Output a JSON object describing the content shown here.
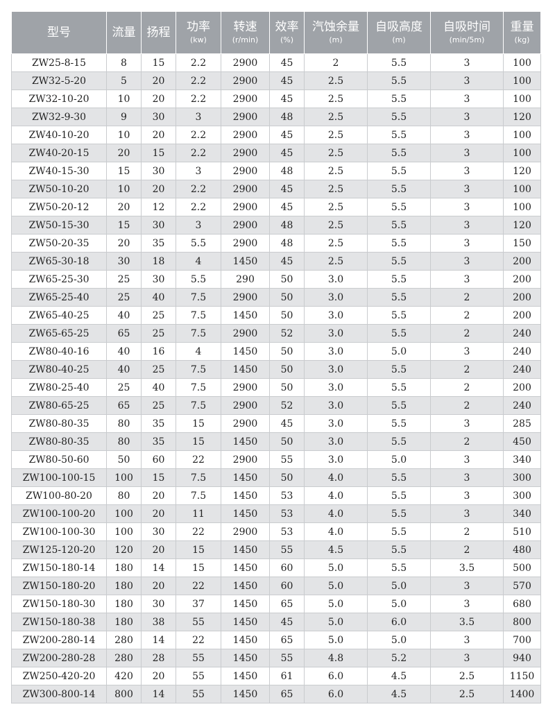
{
  "table": {
    "headers": [
      {
        "label": "型号",
        "unit": ""
      },
      {
        "label": "流量",
        "unit": ""
      },
      {
        "label": "扬程",
        "unit": ""
      },
      {
        "label": "功率",
        "unit": "(kw)"
      },
      {
        "label": "转速",
        "unit": "(r/min)"
      },
      {
        "label": "效率",
        "unit": "(%)"
      },
      {
        "label": "汽蚀余量",
        "unit": "(m)"
      },
      {
        "label": "自吸高度",
        "unit": "(m)"
      },
      {
        "label": "自吸时间",
        "unit": "(min/5m)"
      },
      {
        "label": "重量",
        "unit": "(kg)"
      }
    ],
    "rows": [
      [
        "ZW25-8-15",
        "8",
        "15",
        "2.2",
        "2900",
        "45",
        "2",
        "5.5",
        "3",
        "100"
      ],
      [
        "ZW32-5-20",
        "5",
        "20",
        "2.2",
        "2900",
        "45",
        "2.5",
        "5.5",
        "3",
        "100"
      ],
      [
        "ZW32-10-20",
        "10",
        "20",
        "2.2",
        "2900",
        "45",
        "2.5",
        "5.5",
        "3",
        "100"
      ],
      [
        "ZW32-9-30",
        "9",
        "30",
        "3",
        "2900",
        "48",
        "2.5",
        "5.5",
        "3",
        "120"
      ],
      [
        "ZW40-10-20",
        "10",
        "20",
        "2.2",
        "2900",
        "45",
        "2.5",
        "5.5",
        "3",
        "100"
      ],
      [
        "ZW40-20-15",
        "20",
        "15",
        "2.2",
        "2900",
        "45",
        "2.5",
        "5.5",
        "3",
        "100"
      ],
      [
        "ZW40-15-30",
        "15",
        "30",
        "3",
        "2900",
        "48",
        "2.5",
        "5.5",
        "3",
        "120"
      ],
      [
        "ZW50-10-20",
        "10",
        "20",
        "2.2",
        "2900",
        "45",
        "2.5",
        "5.5",
        "3",
        "100"
      ],
      [
        "ZW50-20-12",
        "20",
        "12",
        "2.2",
        "2900",
        "45",
        "2.5",
        "5.5",
        "3",
        "100"
      ],
      [
        "ZW50-15-30",
        "15",
        "30",
        "3",
        "2900",
        "48",
        "2.5",
        "5.5",
        "3",
        "120"
      ],
      [
        "ZW50-20-35",
        "20",
        "35",
        "5.5",
        "2900",
        "48",
        "2.5",
        "5.5",
        "3",
        "150"
      ],
      [
        "ZW65-30-18",
        "30",
        "18",
        "4",
        "1450",
        "45",
        "2.5",
        "5.5",
        "3",
        "200"
      ],
      [
        "ZW65-25-30",
        "25",
        "30",
        "5.5",
        "290",
        "50",
        "3.0",
        "5.5",
        "3",
        "200"
      ],
      [
        "ZW65-25-40",
        "25",
        "40",
        "7.5",
        "2900",
        "50",
        "3.0",
        "5.5",
        "2",
        "200"
      ],
      [
        "ZW65-40-25",
        "40",
        "25",
        "7.5",
        "1450",
        "50",
        "3.0",
        "5.5",
        "2",
        "200"
      ],
      [
        "ZW65-65-25",
        "65",
        "25",
        "7.5",
        "2900",
        "52",
        "3.0",
        "5.5",
        "2",
        "240"
      ],
      [
        "ZW80-40-16",
        "40",
        "16",
        "4",
        "1450",
        "50",
        "3.0",
        "5.0",
        "3",
        "240"
      ],
      [
        "ZW80-40-25",
        "40",
        "25",
        "7.5",
        "1450",
        "50",
        "3.0",
        "5.5",
        "2",
        "240"
      ],
      [
        "ZW80-25-40",
        "25",
        "40",
        "7.5",
        "2900",
        "50",
        "3.0",
        "5.5",
        "2",
        "200"
      ],
      [
        "ZW80-65-25",
        "65",
        "25",
        "7.5",
        "2900",
        "52",
        "3.0",
        "5.5",
        "2",
        "240"
      ],
      [
        "ZW80-80-35",
        "80",
        "35",
        "15",
        "2900",
        "45",
        "3.0",
        "5.5",
        "3",
        "285"
      ],
      [
        "ZW80-80-35",
        "80",
        "35",
        "15",
        "1450",
        "50",
        "3.0",
        "5.5",
        "2",
        "450"
      ],
      [
        "ZW80-50-60",
        "50",
        "60",
        "22",
        "2900",
        "55",
        "3.0",
        "5.0",
        "3",
        "340"
      ],
      [
        "ZW100-100-15",
        "100",
        "15",
        "7.5",
        "1450",
        "50",
        "4.0",
        "5.5",
        "3",
        "300"
      ],
      [
        "ZW100-80-20",
        "80",
        "20",
        "7.5",
        "1450",
        "53",
        "4.0",
        "5.5",
        "3",
        "300"
      ],
      [
        "ZW100-100-20",
        "100",
        "20",
        "11",
        "1450",
        "53",
        "4.0",
        "5.5",
        "3",
        "340"
      ],
      [
        "ZW100-100-30",
        "100",
        "30",
        "22",
        "2900",
        "53",
        "4.0",
        "5.5",
        "2",
        "510"
      ],
      [
        "ZW125-120-20",
        "120",
        "20",
        "15",
        "1450",
        "55",
        "4.5",
        "5.5",
        "2",
        "480"
      ],
      [
        "ZW150-180-14",
        "180",
        "14",
        "15",
        "1450",
        "60",
        "5.0",
        "5.5",
        "3.5",
        "500"
      ],
      [
        "ZW150-180-20",
        "180",
        "20",
        "22",
        "1450",
        "60",
        "5.0",
        "5.0",
        "3",
        "570"
      ],
      [
        "ZW150-180-30",
        "180",
        "30",
        "37",
        "1450",
        "65",
        "5.0",
        "5.0",
        "3",
        "680"
      ],
      [
        "ZW150-180-38",
        "180",
        "38",
        "55",
        "1450",
        "45",
        "5.0",
        "6.0",
        "3.5",
        "800"
      ],
      [
        "ZW200-280-14",
        "280",
        "14",
        "22",
        "1450",
        "65",
        "5.0",
        "5.0",
        "3",
        "700"
      ],
      [
        "ZW200-280-28",
        "280",
        "28",
        "55",
        "1450",
        "55",
        "4.8",
        "5.2",
        "3",
        "940"
      ],
      [
        "ZW250-420-20",
        "420",
        "20",
        "55",
        "1450",
        "61",
        "6.0",
        "4.5",
        "2.5",
        "1150"
      ],
      [
        "ZW300-800-14",
        "800",
        "14",
        "55",
        "1450",
        "65",
        "6.0",
        "4.5",
        "2.5",
        "1400"
      ]
    ]
  }
}
